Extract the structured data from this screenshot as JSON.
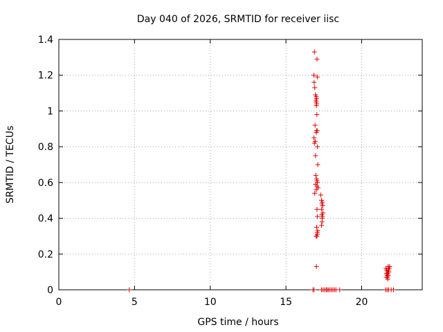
{
  "chart_data": {
    "type": "scatter",
    "title": "Day 040 of 2026, SRMTID for receiver iisc",
    "xlabel": "GPS time / hours",
    "ylabel": "SRMTID / TECUs",
    "xlim": [
      0,
      24
    ],
    "ylim": [
      0,
      1.4
    ],
    "xticks": [
      0,
      5,
      10,
      15,
      20
    ],
    "xtick_labels": [
      "0",
      "5",
      "10",
      "15",
      "20"
    ],
    "yticks": [
      0,
      0.2,
      0.4,
      0.6,
      0.8,
      1.0,
      1.2,
      1.4
    ],
    "ytick_labels": [
      "0",
      "0.2",
      "0.4",
      "0.6",
      "0.8",
      "1",
      "1.2",
      "1.4"
    ],
    "grid": true,
    "marker": "+",
    "color": "#dd0000",
    "series": [
      {
        "name": "SRMTID",
        "x": [
          16.88,
          17.05,
          16.85,
          17.07,
          16.86,
          16.9,
          16.95,
          17.0,
          17.02,
          16.98,
          17.0,
          17.03,
          17.01,
          17.04,
          16.92,
          17.02,
          17.06,
          17.0,
          16.85,
          16.93,
          16.88,
          17.08,
          16.95,
          17.1,
          16.97,
          17.02,
          17.05,
          17.08,
          16.96,
          17.05,
          17.12,
          17.0,
          16.9,
          17.3,
          17.35,
          17.4,
          17.38,
          17.42,
          17.36,
          17.44,
          17.37,
          17.41,
          17.39,
          17.05,
          17.38,
          17.08,
          17.35,
          17.03,
          17.1,
          17.06,
          16.99,
          17.04,
          17.01,
          17.07,
          21.6,
          21.65,
          21.7,
          21.75,
          21.8,
          21.72,
          21.68,
          21.78,
          21.62,
          21.74,
          21.82,
          21.66,
          21.76,
          21.7,
          21.79,
          21.64,
          21.73,
          21.85,
          4.65,
          16.78,
          16.85,
          17.35,
          17.45,
          17.55,
          17.65,
          17.72,
          17.8,
          17.9,
          18.0,
          18.1,
          18.2,
          18.3,
          18.55,
          21.58,
          21.68,
          21.78,
          21.95,
          22.1
        ],
        "y": [
          1.33,
          1.29,
          1.2,
          1.19,
          1.16,
          1.13,
          1.09,
          1.08,
          1.07,
          1.06,
          1.05,
          1.04,
          1.03,
          0.98,
          0.92,
          0.89,
          0.89,
          0.88,
          0.85,
          0.83,
          0.82,
          0.8,
          0.75,
          0.7,
          0.64,
          0.62,
          0.61,
          0.6,
          0.59,
          0.58,
          0.57,
          0.56,
          0.54,
          0.53,
          0.5,
          0.49,
          0.48,
          0.47,
          0.45,
          0.43,
          0.42,
          0.41,
          0.4,
          0.45,
          0.38,
          0.41,
          0.36,
          0.35,
          0.33,
          0.32,
          0.3,
          0.3,
          0.13,
          0.31,
          0.12,
          0.11,
          0.1,
          0.13,
          0.12,
          0.09,
          0.08,
          0.1,
          0.07,
          0.11,
          0.12,
          0.09,
          0.08,
          0.07,
          0.1,
          0.09,
          0.06,
          0.13,
          0.0,
          0.0,
          0.0,
          0.0,
          0.0,
          0.0,
          0.0,
          0.0,
          0.0,
          0.0,
          0.0,
          0.0,
          0.0,
          0.0,
          0.0,
          0.0,
          0.0,
          0.0,
          0.0,
          0.0
        ]
      }
    ]
  }
}
